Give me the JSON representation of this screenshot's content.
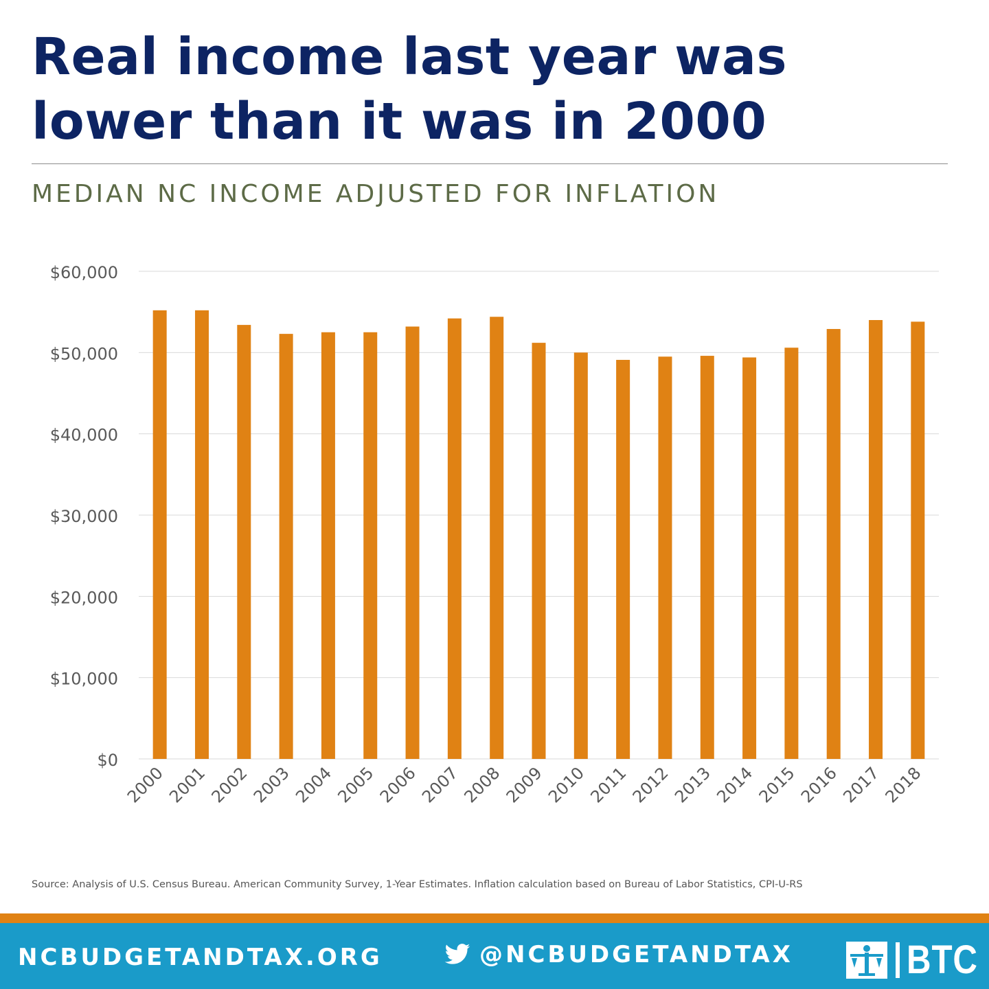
{
  "headline": {
    "line1": "Real income last year was",
    "line2": "lower than it was in 2000"
  },
  "subtitle": "MEDIAN NC INCOME ADJUSTED FOR INFLATION",
  "source": "Source: Analysis of U.S. Census Bureau. American Community Survey, 1-Year Estimates. Inflation calculation based on Bureau of Labor Statistics, CPI-U-RS",
  "footer": {
    "website": "NCBUDGETANDTAX.ORG",
    "handle": "@NCBUDGETANDTAX",
    "logo_text": "BTC",
    "icons": [
      "twitter-icon",
      "btc-logo-icon"
    ]
  },
  "colors": {
    "headline": "#0d2463",
    "subtitle": "#5d6b47",
    "bar": "#e08214",
    "footer": "#1a9bc9",
    "footer_stripe": "#e08214",
    "gridline": "#d9d9d9",
    "tick_label": "#595959"
  },
  "chart_data": {
    "type": "bar",
    "categories": [
      "2000",
      "2001",
      "2002",
      "2003",
      "2004",
      "2005",
      "2006",
      "2007",
      "2008",
      "2009",
      "2010",
      "2011",
      "2012",
      "2013",
      "2014",
      "2015",
      "2016",
      "2017",
      "2018"
    ],
    "values": [
      55200,
      55200,
      53400,
      52300,
      52500,
      52500,
      53200,
      54200,
      54400,
      51200,
      50000,
      49100,
      49500,
      49600,
      49400,
      50600,
      52900,
      54000,
      53800
    ],
    "ylim": [
      0,
      60000
    ],
    "yticks": [
      0,
      10000,
      20000,
      30000,
      40000,
      50000,
      60000
    ],
    "ytick_labels": [
      "$0",
      "$10,000",
      "$20,000",
      "$30,000",
      "$40,000",
      "$50,000",
      "$60,000"
    ],
    "grid": true,
    "legend": "none",
    "xlabel": "",
    "ylabel": ""
  }
}
